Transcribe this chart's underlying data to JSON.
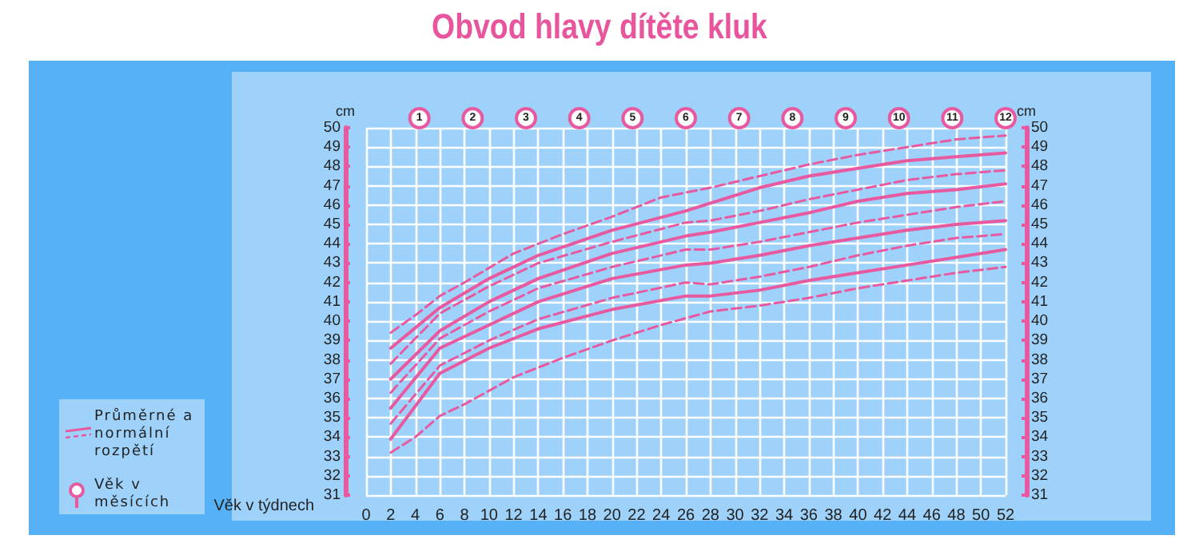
{
  "chart_data": {
    "type": "line",
    "title": "Obvod hlavy dítěte kluk",
    "xlabel": "Věk v týdnech",
    "ylabel": "cm",
    "y2label": "cm",
    "annotations": [
      "Průměrné a normální rozpětí",
      "Věk v měsících"
    ],
    "xlim": [
      0,
      52
    ],
    "xticks": [
      0,
      2,
      4,
      6,
      8,
      10,
      12,
      14,
      16,
      18,
      20,
      22,
      24,
      26,
      28,
      30,
      32,
      34,
      36,
      38,
      40,
      42,
      44,
      46,
      48,
      50,
      52
    ],
    "x2lim": [
      0,
      12
    ],
    "x2ticks": [
      1,
      2,
      3,
      4,
      5,
      6,
      7,
      8,
      9,
      10,
      11,
      12
    ],
    "ylim": [
      31,
      50
    ],
    "yticks": [
      31,
      32,
      33,
      34,
      35,
      36,
      37,
      38,
      39,
      40,
      41,
      42,
      43,
      44,
      45,
      46,
      47,
      48,
      49,
      50
    ],
    "y2lim": [
      31,
      50
    ],
    "y2ticks": [
      31,
      32,
      33,
      34,
      35,
      36,
      37,
      38,
      39,
      40,
      41,
      42,
      43,
      44,
      45,
      46,
      47,
      48,
      49,
      50
    ],
    "grid": true,
    "marker": "none",
    "series": [
      {
        "color": "#e85aa0",
        "line_style": "dashed",
        "x": [
          2,
          4,
          6,
          8,
          12,
          16,
          20,
          24,
          28,
          32,
          36,
          40,
          44,
          48,
          52
        ],
        "values": [
          39.4,
          40.3,
          41.3,
          42.0,
          43.5,
          44.5,
          45.4,
          46.4,
          46.9,
          47.5,
          48.1,
          48.6,
          49.0,
          49.4,
          49.6
        ]
      },
      {
        "color": "#e85aa0",
        "line_style": "solid",
        "x": [
          2,
          6,
          10,
          14,
          20,
          26,
          28,
          32,
          36,
          40,
          44,
          48,
          52
        ],
        "values": [
          38.6,
          40.7,
          42.2,
          43.4,
          44.7,
          45.7,
          46.1,
          46.9,
          47.5,
          47.9,
          48.3,
          48.5,
          48.7
        ]
      },
      {
        "color": "#e85aa0",
        "line_style": "dashed",
        "x": [
          2,
          6,
          10,
          14,
          20,
          26,
          28,
          32,
          36,
          40,
          44,
          48,
          52
        ],
        "values": [
          37.8,
          40.4,
          41.8,
          43.0,
          44.1,
          45.1,
          45.2,
          45.7,
          46.3,
          46.8,
          47.3,
          47.6,
          47.8
        ]
      },
      {
        "color": "#e85aa0",
        "line_style": "solid",
        "x": [
          2,
          6,
          10,
          14,
          20,
          26,
          28,
          32,
          36,
          40,
          44,
          48,
          52
        ],
        "values": [
          37.0,
          39.5,
          41.0,
          42.2,
          43.5,
          44.4,
          44.6,
          45.1,
          45.6,
          46.2,
          46.6,
          46.8,
          47.1
        ]
      },
      {
        "color": "#e85aa0",
        "line_style": "dashed",
        "x": [
          2,
          6,
          10,
          14,
          20,
          26,
          28,
          32,
          36,
          40,
          44,
          48,
          52
        ],
        "values": [
          36.3,
          39.1,
          40.5,
          41.7,
          42.8,
          43.7,
          43.7,
          44.1,
          44.6,
          45.1,
          45.5,
          45.9,
          46.2
        ]
      },
      {
        "color": "#e85aa0",
        "line_style": "solid",
        "x": [
          2,
          6,
          10,
          14,
          20,
          26,
          28,
          32,
          36,
          40,
          44,
          48,
          52
        ],
        "values": [
          35.5,
          38.6,
          39.8,
          41.0,
          42.2,
          42.9,
          43.0,
          43.4,
          43.9,
          44.3,
          44.7,
          45.0,
          45.2
        ]
      },
      {
        "color": "#e85aa0",
        "line_style": "dashed",
        "x": [
          2,
          6,
          10,
          14,
          20,
          26,
          28,
          32,
          36,
          40,
          44,
          48,
          52
        ],
        "values": [
          34.7,
          37.7,
          39.0,
          40.1,
          41.2,
          42.0,
          41.9,
          42.3,
          42.8,
          43.4,
          43.9,
          44.3,
          44.5
        ]
      },
      {
        "color": "#e85aa0",
        "line_style": "solid",
        "x": [
          2,
          6,
          10,
          14,
          20,
          26,
          28,
          32,
          36,
          40,
          44,
          48,
          52
        ],
        "values": [
          33.9,
          37.3,
          38.6,
          39.6,
          40.6,
          41.3,
          41.3,
          41.6,
          42.1,
          42.5,
          42.9,
          43.3,
          43.7
        ]
      },
      {
        "color": "#e85aa0",
        "line_style": "dashed",
        "x": [
          2,
          4,
          6,
          8,
          12,
          16,
          20,
          24,
          28,
          32,
          36,
          40,
          44,
          48,
          52
        ],
        "values": [
          33.2,
          34.0,
          35.1,
          35.7,
          37.1,
          38.1,
          39.0,
          39.8,
          40.5,
          40.8,
          41.2,
          41.7,
          42.1,
          42.5,
          42.8
        ]
      }
    ]
  }
}
